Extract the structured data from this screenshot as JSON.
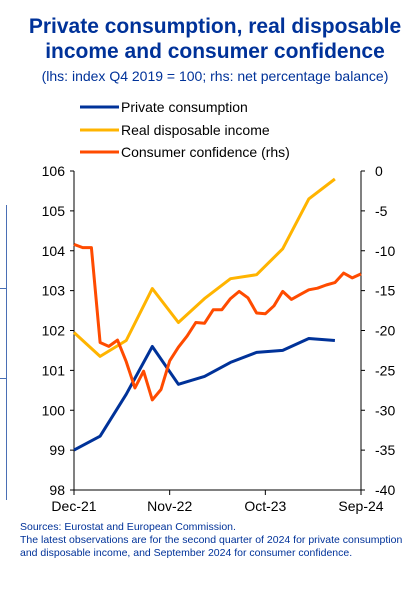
{
  "header": {
    "title_line1": "Private consumption, real disposable",
    "title_line2": "income and consumer confidence",
    "subtitle": "(lhs: index Q4 2019 = 100; rhs: net percentage balance)"
  },
  "footer": {
    "sources": "Sources: Eurostat and European Commission.",
    "note": "The latest observations are for the second quarter of 2024 for private consumption and disposable income, and September 2024 for consumer confidence."
  },
  "colors": {
    "private_consumption": "#003299",
    "real_disposable_income": "#ffb400",
    "consumer_confidence": "#ff4b00",
    "axis": "#000000",
    "grid": "#d9d9d9"
  },
  "chart_data": {
    "type": "line",
    "title": "Private consumption, real disposable income and consumer confidence",
    "subtitle": "(lhs: index Q4 2019 = 100; rhs: net percentage balance)",
    "x_ticks": [
      "Dec-21",
      "Nov-22",
      "Oct-23",
      "Sep-24"
    ],
    "x_range": [
      "2021-12",
      "2024-09"
    ],
    "y_left": {
      "range": [
        98,
        106
      ],
      "ticks": [
        98,
        99,
        100,
        101,
        102,
        103,
        104,
        105,
        106
      ]
    },
    "y_right": {
      "range": [
        -40,
        0
      ],
      "ticks": [
        -40,
        -35,
        -30,
        -25,
        -20,
        -15,
        -10,
        -5,
        0
      ]
    },
    "grid": false,
    "legend_position": "top",
    "series": [
      {
        "name": "Private consumption",
        "axis": "left",
        "x": [
          "2021-12",
          "2022-03",
          "2022-06",
          "2022-09",
          "2022-12",
          "2023-03",
          "2023-06",
          "2023-09",
          "2023-12",
          "2024-03",
          "2024-06"
        ],
        "values": [
          99.0,
          99.35,
          100.4,
          101.6,
          100.65,
          100.85,
          101.2,
          101.45,
          101.5,
          101.8,
          101.75
        ]
      },
      {
        "name": "Real disposable income",
        "axis": "left",
        "x": [
          "2021-12",
          "2022-03",
          "2022-06",
          "2022-09",
          "2022-12",
          "2023-03",
          "2023-06",
          "2023-09",
          "2023-12",
          "2024-03",
          "2024-06"
        ],
        "values": [
          101.95,
          101.35,
          101.75,
          103.05,
          102.2,
          102.8,
          103.3,
          103.4,
          104.05,
          105.3,
          105.8
        ]
      },
      {
        "name": "Consumer confidence (rhs)",
        "axis": "right",
        "x": [
          "2021-12",
          "2022-01",
          "2022-02",
          "2022-03",
          "2022-04",
          "2022-05",
          "2022-06",
          "2022-07",
          "2022-08",
          "2022-09",
          "2022-10",
          "2022-11",
          "2022-12",
          "2023-01",
          "2023-02",
          "2023-03",
          "2023-04",
          "2023-05",
          "2023-06",
          "2023-07",
          "2023-08",
          "2023-09",
          "2023-10",
          "2023-11",
          "2023-12",
          "2024-01",
          "2024-02",
          "2024-03",
          "2024-04",
          "2024-05",
          "2024-06",
          "2024-07",
          "2024-08",
          "2024-09"
        ],
        "values": [
          -9.2,
          -9.6,
          -9.6,
          -21.5,
          -22.0,
          -21.2,
          -23.9,
          -27.2,
          -25.1,
          -28.7,
          -27.4,
          -23.8,
          -22.1,
          -20.7,
          -19.0,
          -19.1,
          -17.4,
          -17.4,
          -16.0,
          -15.1,
          -15.9,
          -17.8,
          -17.9,
          -16.9,
          -15.1,
          -16.1,
          -15.5,
          -14.9,
          -14.7,
          -14.3,
          -14.0,
          -12.8,
          -13.4,
          -12.9
        ]
      }
    ]
  }
}
